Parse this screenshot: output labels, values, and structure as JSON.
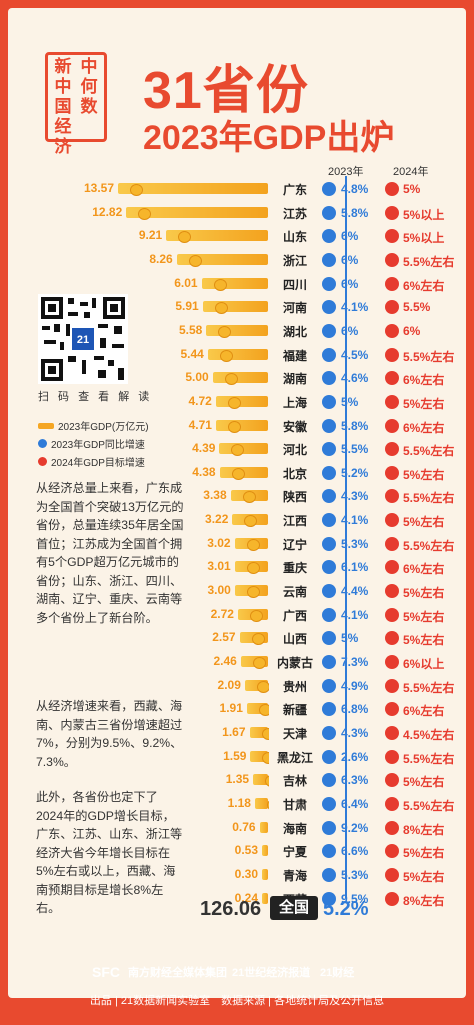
{
  "seal": [
    "新",
    "中",
    "中",
    "何",
    "国",
    "数",
    "经",
    "",
    "济",
    ""
  ],
  "seal_text": "新中何数中国经济",
  "title_line1": "31省份",
  "title_line2": "2023年GDP出炉",
  "col_2023": "2023年",
  "col_2024": "2024年",
  "qr_caption": "扫 码 查 看 解 读",
  "legend": [
    {
      "label": "2023年GDP(万亿元)",
      "kind": "bar"
    },
    {
      "label": "2023年GDP同比增速",
      "kind": "blue"
    },
    {
      "label": "2024年GDP目标增速",
      "kind": "red"
    }
  ],
  "paragraphs": [
    "从经济总量上来看，广东成为全国首个突破13万亿元的省份，总量连续35年居全国首位；江苏成为全国首个拥有5个GDP超万亿元城市的省份；山东、浙江、四川、湖南、辽宁、重庆、云南等多个省份上了新台阶。",
    "从经济增速来看，西藏、海南、内蒙古三省份增速超过7%，分别为9.5%、9.2%、7.3%。",
    "此外，各省份也定下了2024年的GDP增长目标，广东、江苏、山东、浙江等经济大省今年增长目标在5%左右或以上，西藏、海南预期目标是增长8%左右。"
  ],
  "total": {
    "value": "126.06",
    "label": "全国",
    "growth": "5.2%"
  },
  "footer": {
    "logos": [
      "SFC",
      "南方财经全媒体集团",
      "21世纪经济报道",
      "21财经"
    ],
    "credit": "出品 | 21数据新闻实验室　数据来源 | 各地统计局及公开信息"
  },
  "chart_data": {
    "type": "bar",
    "categories": [
      "广东",
      "江苏",
      "山东",
      "浙江",
      "四川",
      "河南",
      "湖北",
      "福建",
      "湖南",
      "上海",
      "安徽",
      "河北",
      "北京",
      "陕西",
      "江西",
      "辽宁",
      "重庆",
      "云南",
      "广西",
      "山西",
      "内蒙古",
      "贵州",
      "新疆",
      "天津",
      "黑龙江",
      "吉林",
      "甘肃",
      "海南",
      "宁夏",
      "青海",
      "西藏"
    ],
    "gdp_2023": [
      13.57,
      12.82,
      9.21,
      8.26,
      6.01,
      5.91,
      5.58,
      5.44,
      5.0,
      4.72,
      4.71,
      4.39,
      4.38,
      3.38,
      3.22,
      3.02,
      3.01,
      3.0,
      2.72,
      2.57,
      2.46,
      2.09,
      1.91,
      1.67,
      1.59,
      1.35,
      1.18,
      0.76,
      0.53,
      0.3,
      0.24
    ],
    "growth_2023": [
      "4.8%",
      "5.8%",
      "6%",
      "6%",
      "6%",
      "4.1%",
      "6%",
      "4.5%",
      "4.6%",
      "5%",
      "5.8%",
      "5.5%",
      "5.2%",
      "4.3%",
      "4.1%",
      "5.3%",
      "6.1%",
      "4.4%",
      "4.1%",
      "5%",
      "7.3%",
      "4.9%",
      "6.8%",
      "4.3%",
      "2.6%",
      "6.3%",
      "6.4%",
      "9.2%",
      "6.6%",
      "5.3%",
      "9.5%"
    ],
    "target_2024": [
      "5%",
      "5%以上",
      "5%以上",
      "5.5%左右",
      "6%左右",
      "5.5%",
      "6%",
      "5.5%左右",
      "6%左右",
      "5%左右",
      "6%左右",
      "5.5%左右",
      "5%左右",
      "5.5%左右",
      "5%左右",
      "5.5%左右",
      "6%左右",
      "5%左右",
      "5%左右",
      "5%左右",
      "6%以上",
      "5.5%左右",
      "6%左右",
      "4.5%左右",
      "5.5%左右",
      "5%左右",
      "5.5%左右",
      "8%左右",
      "5%左右",
      "5%左右",
      "8%左右"
    ]
  }
}
